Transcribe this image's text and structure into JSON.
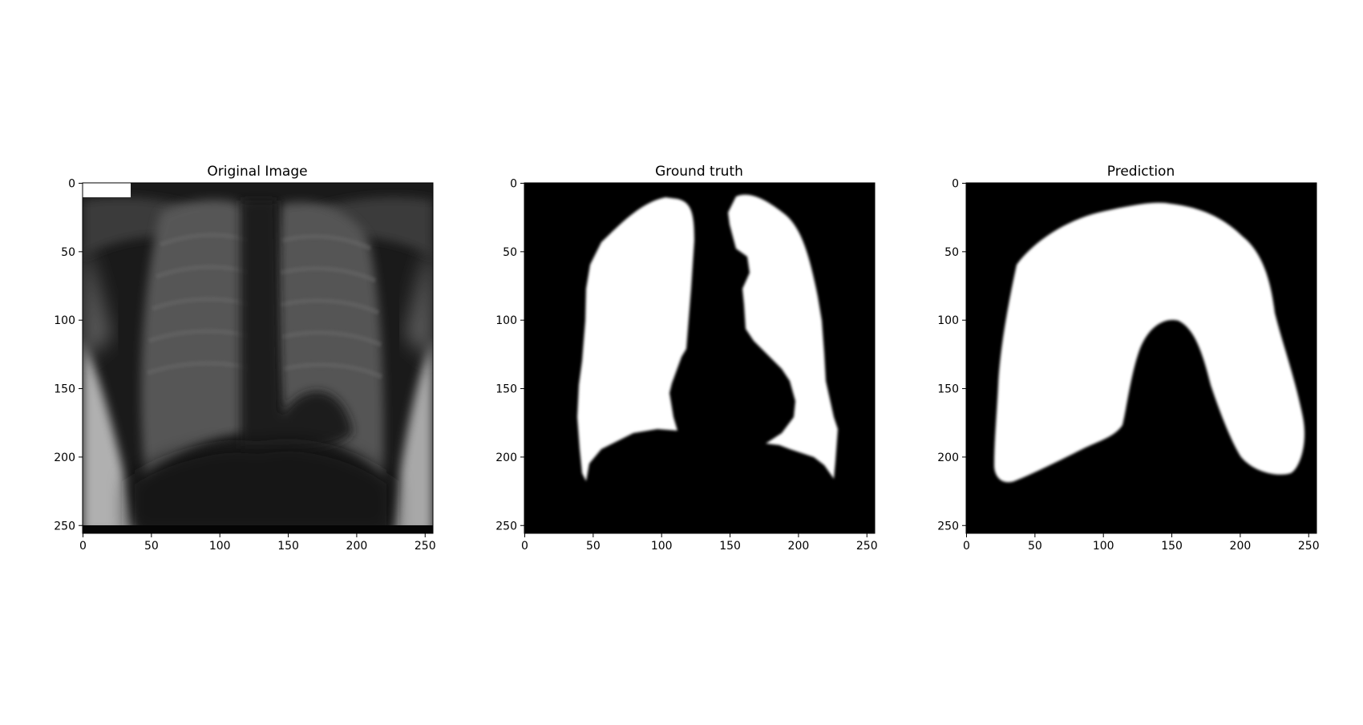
{
  "figure": {
    "panels": [
      {
        "id": "original",
        "title": "Original Image"
      },
      {
        "id": "ground_truth",
        "title": "Ground truth"
      },
      {
        "id": "prediction",
        "title": "Prediction"
      }
    ],
    "axes": {
      "x_ticks": [
        "0",
        "50",
        "100",
        "150",
        "200",
        "250"
      ],
      "y_ticks": [
        "0",
        "50",
        "100",
        "150",
        "200",
        "250"
      ],
      "x_tick_values": [
        0,
        50,
        100,
        150,
        200,
        250
      ],
      "y_tick_values": [
        0,
        50,
        100,
        150,
        200,
        250
      ],
      "extent": [
        0,
        256
      ]
    },
    "colors": {
      "mask_foreground": "#ffffff",
      "mask_background": "#000000",
      "xray_dark": "#111111",
      "xray_lung": "#4a4a4a",
      "xray_bright": "#b5b5b5"
    }
  }
}
